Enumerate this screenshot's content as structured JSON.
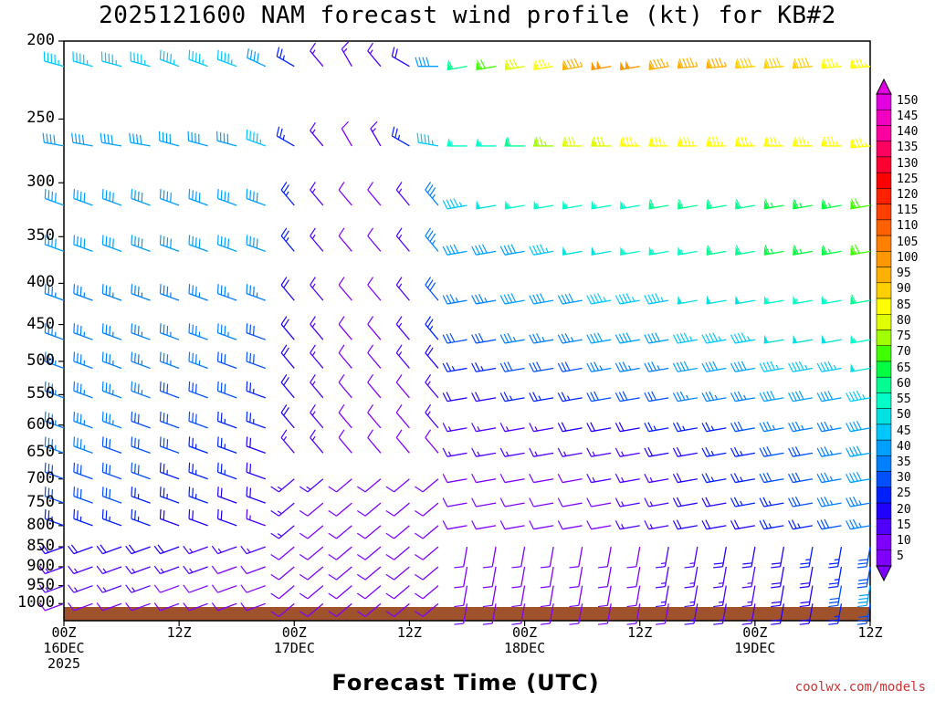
{
  "title": "2025121600 NAM forecast wind profile (kt) for KB#2",
  "xlabel": "Forecast Time (UTC)",
  "credit": "coolwx.com/models",
  "chart_data": {
    "type": "wind-barb-time-height",
    "y_axis": {
      "scale": "log",
      "ticks": [
        200,
        250,
        300,
        350,
        400,
        450,
        500,
        550,
        600,
        650,
        700,
        750,
        800,
        850,
        900,
        950,
        1000
      ],
      "range": [
        200,
        1050
      ]
    },
    "x_axis": {
      "range_hours": [
        0,
        84
      ],
      "ticks": [
        {
          "hour": 0,
          "label": "00Z",
          "sub1": "16DEC",
          "sub2": "2025"
        },
        {
          "hour": 12,
          "label": "12Z",
          "sub1": "",
          "sub2": ""
        },
        {
          "hour": 24,
          "label": "00Z",
          "sub1": "17DEC",
          "sub2": ""
        },
        {
          "hour": 36,
          "label": "12Z",
          "sub1": "",
          "sub2": ""
        },
        {
          "hour": 48,
          "label": "00Z",
          "sub1": "18DEC",
          "sub2": ""
        },
        {
          "hour": 60,
          "label": "12Z",
          "sub1": "",
          "sub2": ""
        },
        {
          "hour": 72,
          "label": "00Z",
          "sub1": "19DEC",
          "sub2": ""
        },
        {
          "hour": 84,
          "label": "12Z",
          "sub1": "",
          "sub2": ""
        }
      ]
    },
    "times_hours": [
      0,
      3,
      6,
      9,
      12,
      15,
      18,
      21,
      24,
      27,
      30,
      33,
      36,
      39,
      42,
      45,
      48,
      51,
      54,
      57,
      60,
      63,
      66,
      69,
      72,
      75,
      78,
      81,
      84
    ],
    "levels": [
      {
        "p": 215,
        "speed": [
          45,
          45,
          45,
          45,
          45,
          45,
          45,
          40,
          25,
          15,
          15,
          15,
          20,
          40,
          60,
          70,
          80,
          85,
          95,
          100,
          100,
          95,
          95,
          95,
          90,
          90,
          90,
          85,
          85
        ],
        "dir": [
          285,
          285,
          285,
          285,
          290,
          290,
          290,
          295,
          300,
          320,
          330,
          320,
          300,
          270,
          260,
          260,
          260,
          260,
          260,
          260,
          260,
          260,
          265,
          265,
          265,
          265,
          265,
          265,
          265
        ]
      },
      {
        "p": 270,
        "speed": [
          40,
          40,
          40,
          40,
          40,
          40,
          40,
          45,
          25,
          15,
          10,
          15,
          25,
          45,
          55,
          55,
          60,
          75,
          80,
          80,
          85,
          85,
          85,
          85,
          85,
          85,
          85,
          85,
          85
        ],
        "dir": [
          280,
          280,
          280,
          280,
          285,
          285,
          285,
          290,
          300,
          320,
          330,
          330,
          300,
          280,
          270,
          270,
          270,
          270,
          270,
          270,
          270,
          270,
          270,
          270,
          270,
          270,
          270,
          270,
          265
        ]
      },
      {
        "p": 320,
        "speed": [
          40,
          40,
          40,
          40,
          40,
          40,
          40,
          40,
          25,
          15,
          10,
          10,
          15,
          35,
          45,
          50,
          55,
          55,
          55,
          55,
          55,
          60,
          60,
          60,
          60,
          65,
          65,
          65,
          70
        ]
      },
      {
        "p": 365,
        "speed": [
          40,
          40,
          40,
          40,
          40,
          40,
          40,
          40,
          25,
          15,
          10,
          10,
          15,
          35,
          40,
          40,
          40,
          45,
          50,
          50,
          55,
          55,
          55,
          60,
          60,
          65,
          65,
          65,
          70
        ]
      },
      {
        "p": 420,
        "speed": [
          35,
          35,
          35,
          35,
          35,
          35,
          35,
          35,
          20,
          15,
          10,
          10,
          15,
          30,
          35,
          35,
          40,
          40,
          40,
          45,
          45,
          45,
          50,
          50,
          50,
          55,
          55,
          55,
          60
        ]
      },
      {
        "p": 470,
        "speed": [
          35,
          35,
          35,
          35,
          35,
          35,
          35,
          30,
          20,
          15,
          10,
          10,
          15,
          25,
          30,
          30,
          35,
          35,
          35,
          40,
          40,
          40,
          45,
          45,
          45,
          50,
          50,
          50,
          55
        ]
      },
      {
        "p": 510,
        "speed": [
          35,
          35,
          35,
          35,
          35,
          35,
          30,
          30,
          20,
          15,
          10,
          10,
          15,
          20,
          25,
          25,
          30,
          30,
          30,
          35,
          35,
          35,
          40,
          40,
          40,
          45,
          45,
          45,
          50
        ]
      },
      {
        "p": 555,
        "speed": [
          35,
          35,
          35,
          35,
          30,
          30,
          30,
          25,
          20,
          15,
          10,
          10,
          10,
          15,
          20,
          20,
          25,
          25,
          25,
          30,
          30,
          30,
          35,
          35,
          35,
          40,
          40,
          40,
          45
        ]
      },
      {
        "p": 605,
        "speed": [
          35,
          35,
          35,
          30,
          30,
          30,
          25,
          25,
          20,
          15,
          10,
          10,
          10,
          15,
          15,
          15,
          15,
          15,
          20,
          20,
          20,
          25,
          25,
          25,
          30,
          35,
          35,
          35,
          40
        ]
      },
      {
        "p": 650,
        "speed": [
          35,
          35,
          30,
          30,
          30,
          25,
          25,
          20,
          15,
          15,
          10,
          10,
          10,
          10,
          15,
          15,
          15,
          15,
          15,
          15,
          15,
          20,
          20,
          25,
          25,
          30,
          30,
          35,
          40
        ]
      },
      {
        "p": 700,
        "speed": [
          30,
          30,
          30,
          30,
          25,
          25,
          25,
          20,
          15,
          15,
          10,
          10,
          10,
          10,
          10,
          10,
          10,
          10,
          10,
          15,
          15,
          15,
          20,
          25,
          25,
          30,
          30,
          35,
          40
        ]
      },
      {
        "p": 750,
        "speed": [
          30,
          30,
          30,
          25,
          25,
          25,
          20,
          20,
          15,
          10,
          10,
          10,
          10,
          10,
          10,
          10,
          10,
          10,
          10,
          10,
          15,
          15,
          20,
          20,
          25,
          25,
          30,
          35,
          35
        ]
      },
      {
        "p": 800,
        "speed": [
          25,
          25,
          25,
          25,
          20,
          20,
          20,
          15,
          15,
          10,
          10,
          10,
          10,
          10,
          10,
          10,
          10,
          10,
          10,
          10,
          15,
          15,
          20,
          20,
          20,
          25,
          25,
          30,
          35
        ]
      },
      {
        "p": 850,
        "speed": [
          20,
          20,
          20,
          20,
          20,
          15,
          15,
          15,
          10,
          10,
          10,
          10,
          10,
          10,
          10,
          10,
          10,
          10,
          10,
          10,
          10,
          15,
          15,
          20,
          20,
          20,
          25,
          25,
          30
        ]
      },
      {
        "p": 900,
        "speed": [
          15,
          15,
          15,
          15,
          15,
          15,
          10,
          10,
          10,
          10,
          10,
          10,
          10,
          10,
          10,
          10,
          10,
          10,
          10,
          10,
          10,
          15,
          15,
          15,
          15,
          20,
          20,
          25,
          30
        ]
      },
      {
        "p": 950,
        "speed": [
          15,
          15,
          15,
          15,
          10,
          10,
          10,
          10,
          10,
          10,
          10,
          10,
          10,
          10,
          10,
          10,
          10,
          10,
          10,
          10,
          10,
          15,
          15,
          15,
          15,
          20,
          20,
          30,
          40
        ]
      },
      {
        "p": 1000,
        "speed": [
          10,
          10,
          10,
          10,
          10,
          10,
          10,
          10,
          10,
          10,
          10,
          10,
          10,
          10,
          10,
          10,
          10,
          10,
          10,
          10,
          10,
          10,
          15,
          15,
          15,
          20,
          20,
          25,
          30
        ]
      }
    ],
    "colorbar": {
      "labels": [
        150,
        145,
        140,
        135,
        130,
        125,
        120,
        115,
        110,
        105,
        100,
        95,
        90,
        85,
        80,
        75,
        70,
        65,
        60,
        55,
        50,
        45,
        40,
        35,
        30,
        25,
        20,
        15,
        10,
        5
      ],
      "colors": [
        "#e000e0",
        "#f000c0",
        "#ff00a0",
        "#ff0060",
        "#ff0030",
        "#ff0000",
        "#ff2000",
        "#ff4000",
        "#ff6000",
        "#ff8000",
        "#ff9800",
        "#ffb000",
        "#ffd000",
        "#ffff00",
        "#e0ff00",
        "#a0ff00",
        "#40ff00",
        "#00ff40",
        "#00ff90",
        "#00ffc8",
        "#00e0e0",
        "#00c8ff",
        "#00a0ff",
        "#0080ff",
        "#0050ff",
        "#0020ff",
        "#2000ff",
        "#5000ff",
        "#8000ff",
        "#8000ff"
      ]
    },
    "terrain_color": "#a0522d"
  }
}
